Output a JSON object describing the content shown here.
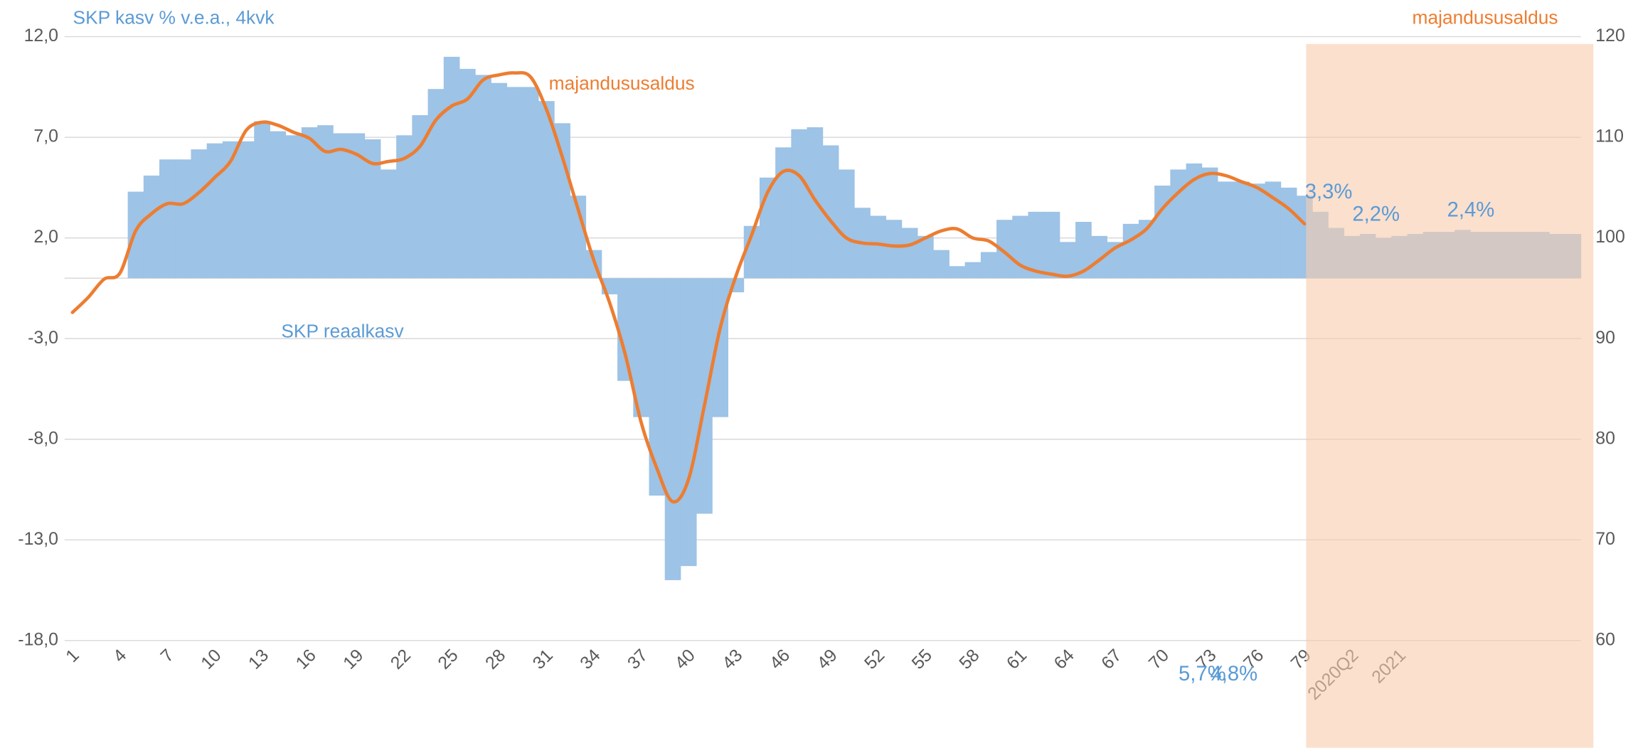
{
  "chart_data": {
    "type": "bar",
    "y_label": "SKP kasv % v.e.a., 4kvk",
    "y2_label": "majandususaldus",
    "categories": [
      "1",
      null,
      null,
      "4",
      null,
      null,
      "7",
      null,
      null,
      "10",
      null,
      null,
      "13",
      null,
      null,
      "16",
      null,
      null,
      "19",
      null,
      null,
      "22",
      null,
      null,
      "25",
      null,
      null,
      "28",
      null,
      null,
      "31",
      null,
      null,
      "34",
      null,
      null,
      "37",
      null,
      null,
      "40",
      null,
      null,
      "43",
      null,
      null,
      "46",
      null,
      null,
      "49",
      null,
      null,
      "52",
      null,
      null,
      "55",
      null,
      null,
      "58",
      null,
      null,
      "61",
      null,
      null,
      "64",
      null,
      null,
      "67",
      null,
      null,
      "70",
      null,
      null,
      "73",
      null,
      null,
      "76",
      null,
      null,
      "79",
      null,
      null,
      "2020Q2",
      null,
      null,
      "2021",
      null,
      null,
      null,
      null,
      null,
      null,
      null,
      null,
      null,
      null,
      null
    ],
    "series": [
      {
        "name": "SKP reaalkasv",
        "type": "bar",
        "color": "#9dc3e6",
        "values": [
          null,
          null,
          null,
          null,
          4.3,
          5.1,
          5.9,
          5.9,
          6.4,
          6.7,
          6.8,
          6.8,
          7.8,
          7.3,
          7.1,
          7.5,
          7.6,
          7.2,
          7.2,
          6.9,
          5.4,
          7.1,
          8.1,
          9.4,
          11.0,
          10.4,
          10.1,
          9.7,
          9.5,
          9.5,
          8.8,
          7.7,
          4.1,
          1.4,
          -0.8,
          -5.1,
          -6.9,
          -10.8,
          -15.0,
          -14.3,
          -11.7,
          -6.9,
          -0.7,
          2.6,
          5.0,
          6.5,
          7.4,
          7.5,
          6.6,
          5.4,
          3.5,
          3.1,
          2.9,
          2.5,
          2.1,
          1.4,
          0.6,
          0.8,
          1.3,
          2.9,
          3.1,
          3.3,
          3.3,
          1.8,
          2.8,
          2.1,
          1.8,
          2.7,
          2.9,
          4.6,
          5.4,
          5.7,
          5.5,
          4.8,
          4.8,
          4.7,
          4.8,
          4.5,
          4.1,
          3.3,
          2.5,
          2.1,
          2.2,
          2.0,
          2.1,
          2.2,
          2.3,
          2.3,
          2.4,
          2.3,
          2.3,
          2.3,
          2.3,
          2.3,
          2.2,
          2.2
        ],
        "value_labels": [
          null,
          null,
          null,
          null,
          null,
          null,
          null,
          null,
          null,
          null,
          null,
          null,
          null,
          null,
          null,
          null,
          null,
          null,
          null,
          null,
          null,
          null,
          null,
          null,
          null,
          null,
          null,
          null,
          null,
          null,
          null,
          null,
          null,
          null,
          null,
          null,
          null,
          null,
          null,
          null,
          null,
          null,
          null,
          null,
          null,
          null,
          null,
          null,
          null,
          null,
          null,
          null,
          null,
          null,
          null,
          null,
          null,
          null,
          null,
          null,
          null,
          null,
          null,
          null,
          null,
          null,
          null,
          null,
          null,
          null,
          null,
          "5,7%",
          null,
          "4,8%",
          null,
          null,
          null,
          null,
          null,
          "3,3%",
          null,
          null,
          "2,2%",
          null,
          null,
          null,
          null,
          null,
          "2,4%",
          null,
          null,
          null,
          null,
          null,
          null,
          null
        ]
      },
      {
        "name": "majandususaldus",
        "type": "line",
        "axis": "y2",
        "color": "#ed7d31",
        "values": [
          92.6,
          94.1,
          95.9,
          96.5,
          100.7,
          102.4,
          103.4,
          103.4,
          104.5,
          106.0,
          107.6,
          110.7,
          111.5,
          111.2,
          110.5,
          109.9,
          108.6,
          108.8,
          108.3,
          107.4,
          107.6,
          107.9,
          109.1,
          111.7,
          113.1,
          113.8,
          115.7,
          116.2,
          116.4,
          116.0,
          112.8,
          108.1,
          102.9,
          97.8,
          93.6,
          88.4,
          81.7,
          77.1,
          73.8,
          76.0,
          83.3,
          91.0,
          96.2,
          100.3,
          104.5,
          106.6,
          106.2,
          103.8,
          101.7,
          100.0,
          99.5,
          99.4,
          99.2,
          99.3,
          100.0,
          100.7,
          100.9,
          100.0,
          99.7,
          98.6,
          97.3,
          96.7,
          96.4,
          96.2,
          96.7,
          97.8,
          99.0,
          99.8,
          100.9,
          102.9,
          104.5,
          105.8,
          106.4,
          106.2,
          105.6,
          105.0,
          104.0,
          102.9,
          101.4,
          null,
          null,
          null,
          null,
          null,
          null,
          null,
          null,
          null,
          null,
          null,
          null,
          null,
          null,
          null,
          null,
          null
        ]
      }
    ],
    "ylim": [
      -18,
      12
    ],
    "yticks": [
      {
        "value": -18,
        "label": "-18,0"
      },
      {
        "value": -13,
        "label": "-13,0"
      },
      {
        "value": -8,
        "label": "-8,0"
      },
      {
        "value": -3,
        "label": "-3,0"
      },
      {
        "value": 2,
        "label": "2,0"
      },
      {
        "value": 7,
        "label": "7,0"
      },
      {
        "value": 12,
        "label": "12,0"
      }
    ],
    "y2lim": [
      60,
      120
    ],
    "y2ticks": [
      60,
      70,
      80,
      90,
      100,
      110,
      120
    ],
    "grid": true,
    "shade": {
      "from": 79,
      "color": "#f8cbad"
    }
  }
}
